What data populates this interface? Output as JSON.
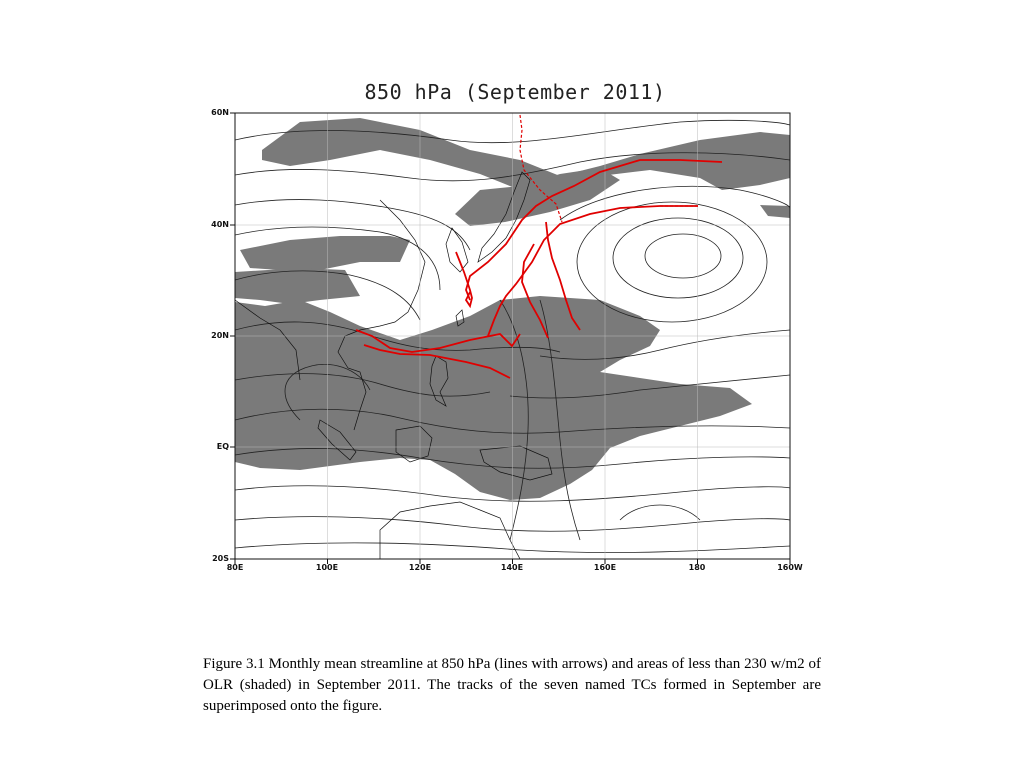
{
  "map": {
    "title": "850 hPa  (September 2011)",
    "lat_labels": [
      "60N",
      "40N",
      "20N",
      "EQ",
      "20S"
    ],
    "lon_labels": [
      "80E",
      "100E",
      "120E",
      "140E",
      "160E",
      "180",
      "160W"
    ],
    "shading_color": "#7a7a7a",
    "streamline_color": "#222222",
    "track_color": "#e00000",
    "coastline_color": "#111111"
  },
  "caption": {
    "text": "Figure 3.1  Monthly mean streamline at 850 hPa (lines with arrows) and areas of less than 230 w/m2 of OLR (shaded) in September 2011.  The tracks of the seven named TCs formed in September are superimposed onto the figure."
  }
}
